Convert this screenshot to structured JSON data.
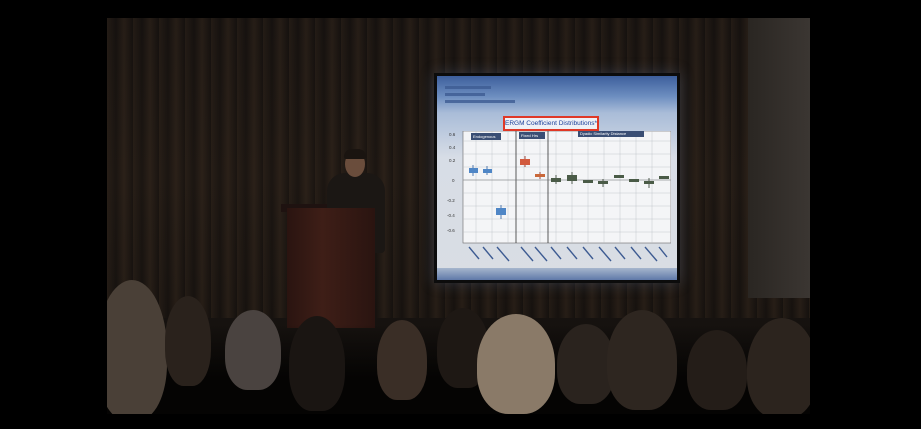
{
  "slide": {
    "title": "ERGM Coefficient Distributions*",
    "groups": [
      "Endogenous",
      "Fixed Hrs",
      "Dyadic Similarity Distance"
    ],
    "yticks": [
      "0.6",
      "0.4",
      "0.2",
      "0",
      "-0.2",
      "-0.4",
      "-0.6"
    ]
  },
  "colors": {
    "highlight_box": "#e03826",
    "slide_bg": "#d9dde3",
    "header_blue": "#3d5f9c"
  }
}
